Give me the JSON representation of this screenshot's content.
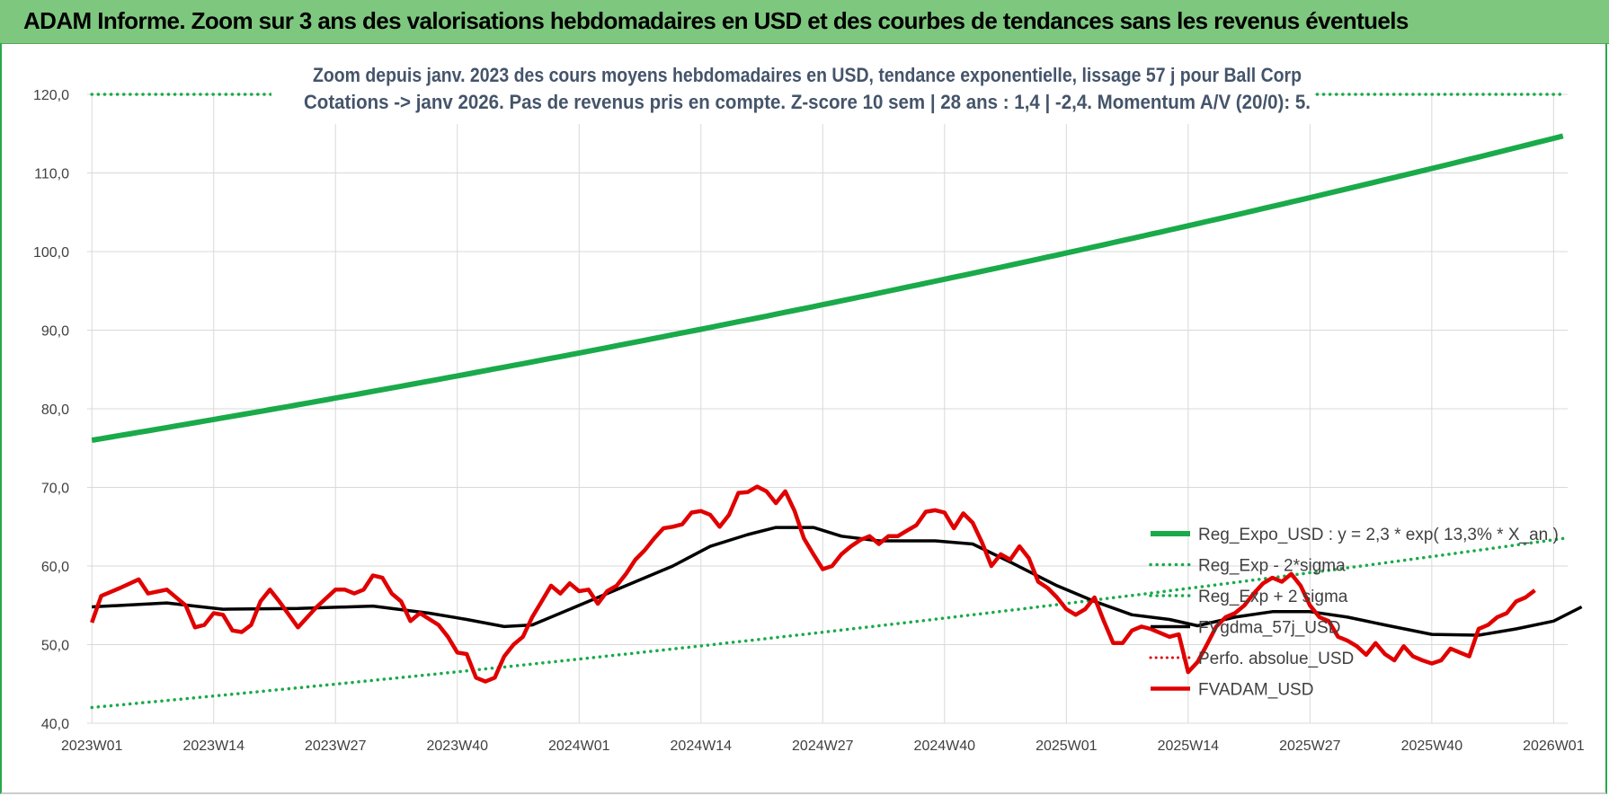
{
  "header": {
    "title": "ADAM Informe. Zoom sur 3 ans des valorisations hebdomadaires en USD et des courbes de tendances sans les revenus éventuels"
  },
  "colors": {
    "banner": "#7dc77e",
    "reg_expo": "#1aaa4a",
    "reg_band": "#1aaa4a",
    "fvgdma": "#000000",
    "perfo": "#e00000",
    "fvadam": "#e00000",
    "subtitle": "#44546a"
  },
  "chart_data": {
    "type": "line",
    "subtitle_line1": "Zoom depuis janv. 2023 des cours moyens hebdomadaires en USD, tendance exponentielle, lissage 57 j pour Ball Corp",
    "subtitle_line2": "Cotations -> janv 2026. Pas de revenus pris en compte. Z-score 10 sem | 28 ans : 1,4 | -2,4. Momentum A/V (20/0): 5.",
    "ylim": [
      40,
      120
    ],
    "yticks": [
      "40,0",
      "50,0",
      "60,0",
      "70,0",
      "80,0",
      "90,0",
      "100,0",
      "110,0",
      "120,0"
    ],
    "ytick_values": [
      40,
      50,
      60,
      70,
      80,
      90,
      100,
      110,
      120
    ],
    "x_count": 158,
    "xticks": [
      {
        "label": "2023W01",
        "index": 0
      },
      {
        "label": "2023W14",
        "index": 13
      },
      {
        "label": "2023W27",
        "index": 26
      },
      {
        "label": "2023W40",
        "index": 39
      },
      {
        "label": "2024W01",
        "index": 52
      },
      {
        "label": "2024W14",
        "index": 65
      },
      {
        "label": "2024W27",
        "index": 78
      },
      {
        "label": "2024W40",
        "index": 91
      },
      {
        "label": "2025W01",
        "index": 104
      },
      {
        "label": "2025W14",
        "index": 117
      },
      {
        "label": "2025W27",
        "index": 130
      },
      {
        "label": "2025W40",
        "index": 143
      },
      {
        "label": "2026W01",
        "index": 156
      }
    ],
    "series": [
      {
        "key": "reg_expo",
        "name": "Reg_Expo_USD : y = 2,3 * exp( 13,3% * X_an )",
        "style": "solid-thick",
        "exp_start": 76.0,
        "exp_end": 114.7
      },
      {
        "key": "reg_minus",
        "name": "Reg_Exp - 2*sigma",
        "style": "dotted",
        "exp_start": 42.0,
        "exp_end": 63.5
      },
      {
        "key": "reg_plus",
        "name": "Reg_Exp + 2 sigma",
        "style": "dotted",
        "exp_start": 120.0,
        "exp_end": 120.0
      },
      {
        "key": "fvgdma",
        "name": "FVgdma_57j_USD",
        "style": "solid",
        "points": [
          [
            0,
            54.8
          ],
          [
            8,
            55.3
          ],
          [
            14,
            54.5
          ],
          [
            22,
            54.6
          ],
          [
            30,
            54.9
          ],
          [
            36,
            54.0
          ],
          [
            40,
            53.2
          ],
          [
            44,
            52.3
          ],
          [
            47,
            52.5
          ],
          [
            52,
            55.0
          ],
          [
            56,
            57.0
          ],
          [
            62,
            60.0
          ],
          [
            66,
            62.5
          ],
          [
            70,
            64.0
          ],
          [
            73,
            64.9
          ],
          [
            77,
            64.9
          ],
          [
            80,
            63.8
          ],
          [
            84,
            63.2
          ],
          [
            90,
            63.2
          ],
          [
            94,
            62.8
          ],
          [
            98,
            60.5
          ],
          [
            103,
            57.5
          ],
          [
            107,
            55.5
          ],
          [
            111,
            53.8
          ],
          [
            115,
            53.2
          ],
          [
            118,
            52.4
          ],
          [
            122,
            53.5
          ],
          [
            126,
            54.2
          ],
          [
            130,
            54.2
          ],
          [
            134,
            53.5
          ],
          [
            138,
            52.5
          ],
          [
            143,
            51.3
          ],
          [
            148,
            51.2
          ],
          [
            152,
            52.0
          ],
          [
            156,
            53.0
          ],
          [
            159,
            54.8
          ]
        ]
      },
      {
        "key": "perfo",
        "name": "Perfo. absolue_USD",
        "style": "dotted-red",
        "points": []
      },
      {
        "key": "fvadam",
        "name": "FVADAM_USD",
        "style": "solid-thick",
        "points": [
          [
            0,
            52.8
          ],
          [
            1,
            56.2
          ],
          [
            3,
            57.2
          ],
          [
            5,
            58.3
          ],
          [
            6,
            56.5
          ],
          [
            8,
            57.0
          ],
          [
            10,
            55.0
          ],
          [
            11,
            52.2
          ],
          [
            12,
            52.5
          ],
          [
            13,
            54.0
          ],
          [
            14,
            53.8
          ],
          [
            15,
            51.8
          ],
          [
            16,
            51.6
          ],
          [
            17,
            52.5
          ],
          [
            18,
            55.5
          ],
          [
            19,
            57.0
          ],
          [
            20,
            55.5
          ],
          [
            22,
            52.2
          ],
          [
            24,
            54.8
          ],
          [
            26,
            57.0
          ],
          [
            27,
            57.0
          ],
          [
            28,
            56.5
          ],
          [
            29,
            57.0
          ],
          [
            30,
            58.8
          ],
          [
            31,
            58.5
          ],
          [
            32,
            56.5
          ],
          [
            33,
            55.5
          ],
          [
            34,
            53.0
          ],
          [
            35,
            54.0
          ],
          [
            37,
            52.5
          ],
          [
            38,
            51.0
          ],
          [
            39,
            49.0
          ],
          [
            40,
            48.8
          ],
          [
            41,
            45.8
          ],
          [
            42,
            45.3
          ],
          [
            43,
            45.8
          ],
          [
            44,
            48.5
          ],
          [
            45,
            50.0
          ],
          [
            46,
            51.0
          ],
          [
            47,
            53.5
          ],
          [
            48,
            55.5
          ],
          [
            49,
            57.5
          ],
          [
            50,
            56.5
          ],
          [
            51,
            57.8
          ],
          [
            52,
            56.8
          ],
          [
            53,
            57.0
          ],
          [
            54,
            55.2
          ],
          [
            55,
            56.8
          ],
          [
            56,
            57.5
          ],
          [
            57,
            59.0
          ],
          [
            58,
            60.8
          ],
          [
            59,
            62.0
          ],
          [
            60,
            63.5
          ],
          [
            61,
            64.8
          ],
          [
            62,
            65.0
          ],
          [
            63,
            65.3
          ],
          [
            64,
            66.8
          ],
          [
            65,
            67.0
          ],
          [
            66,
            66.5
          ],
          [
            67,
            65.0
          ],
          [
            68,
            66.5
          ],
          [
            69,
            69.3
          ],
          [
            70,
            69.4
          ],
          [
            71,
            70.1
          ],
          [
            72,
            69.5
          ],
          [
            73,
            68.0
          ],
          [
            74,
            69.5
          ],
          [
            75,
            67.0
          ],
          [
            76,
            63.5
          ],
          [
            77,
            61.5
          ],
          [
            78,
            59.6
          ],
          [
            79,
            60.0
          ],
          [
            80,
            61.5
          ],
          [
            81,
            62.5
          ],
          [
            82,
            63.3
          ],
          [
            83,
            63.8
          ],
          [
            84,
            62.8
          ],
          [
            85,
            63.8
          ],
          [
            86,
            63.8
          ],
          [
            87,
            64.5
          ],
          [
            88,
            65.2
          ],
          [
            89,
            66.9
          ],
          [
            90,
            67.1
          ],
          [
            91,
            66.8
          ],
          [
            92,
            64.8
          ],
          [
            93,
            66.7
          ],
          [
            94,
            65.5
          ],
          [
            95,
            63.0
          ],
          [
            96,
            60.0
          ],
          [
            97,
            61.5
          ],
          [
            98,
            60.8
          ],
          [
            99,
            62.5
          ],
          [
            100,
            61.0
          ],
          [
            101,
            58.0
          ],
          [
            102,
            57.2
          ],
          [
            103,
            56.0
          ],
          [
            104,
            54.5
          ],
          [
            105,
            53.8
          ],
          [
            106,
            54.5
          ],
          [
            107,
            56.0
          ],
          [
            108,
            53.0
          ],
          [
            109,
            50.2
          ],
          [
            110,
            50.2
          ],
          [
            111,
            51.8
          ],
          [
            112,
            52.3
          ],
          [
            113,
            52.0
          ],
          [
            114,
            51.5
          ],
          [
            115,
            51.0
          ],
          [
            116,
            51.3
          ],
          [
            117,
            46.5
          ],
          [
            118,
            47.8
          ],
          [
            119,
            50.0
          ],
          [
            120,
            52.3
          ],
          [
            121,
            53.5
          ],
          [
            122,
            54.0
          ],
          [
            123,
            55.0
          ],
          [
            124,
            56.5
          ],
          [
            125,
            57.8
          ],
          [
            126,
            58.5
          ],
          [
            127,
            58.0
          ],
          [
            128,
            59.0
          ],
          [
            129,
            57.5
          ],
          [
            130,
            55.0
          ],
          [
            131,
            53.5
          ],
          [
            132,
            53.0
          ],
          [
            133,
            51.0
          ],
          [
            134,
            50.5
          ],
          [
            135,
            49.8
          ],
          [
            136,
            48.7
          ],
          [
            137,
            50.2
          ],
          [
            138,
            48.8
          ],
          [
            139,
            48.0
          ],
          [
            140,
            49.8
          ],
          [
            141,
            48.5
          ],
          [
            142,
            48.0
          ],
          [
            143,
            47.6
          ],
          [
            144,
            48.0
          ],
          [
            145,
            49.5
          ],
          [
            146,
            49.0
          ],
          [
            147,
            48.5
          ],
          [
            148,
            52.0
          ],
          [
            149,
            52.5
          ],
          [
            150,
            53.5
          ],
          [
            151,
            54.0
          ],
          [
            152,
            55.5
          ],
          [
            153,
            56.0
          ],
          [
            154,
            56.9
          ]
        ]
      }
    ]
  }
}
